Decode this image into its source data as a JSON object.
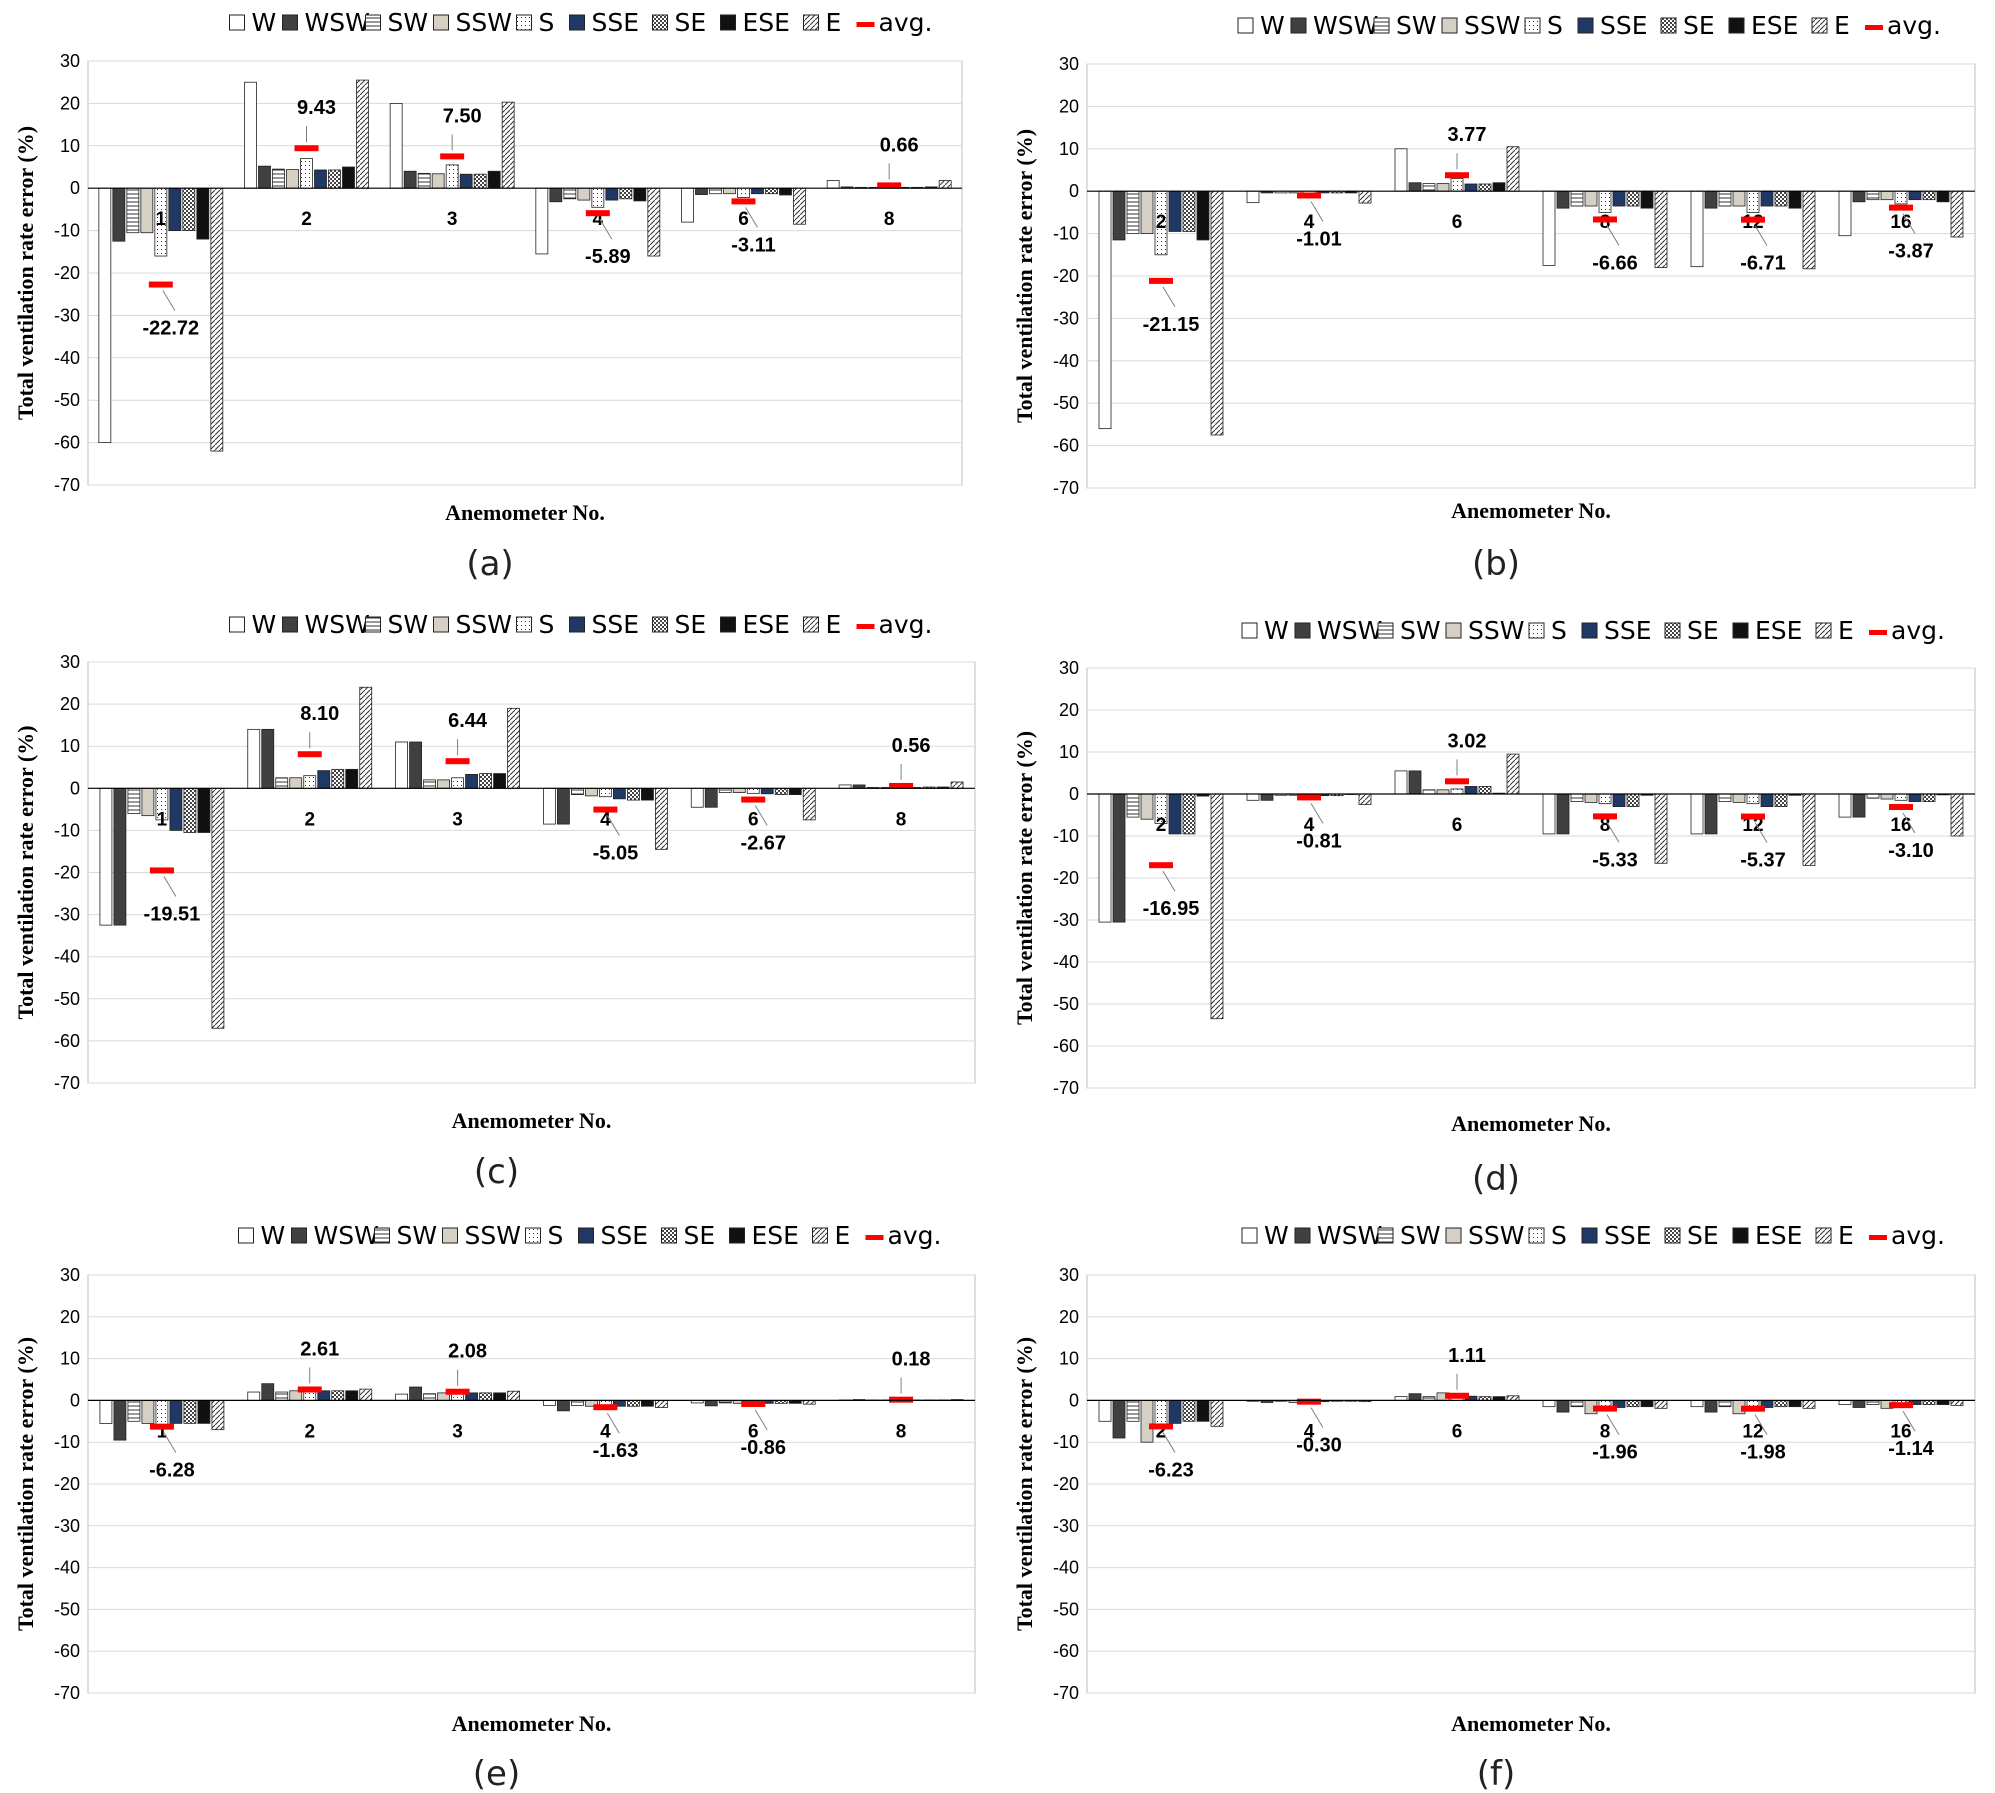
{
  "legend": {
    "series": [
      "W",
      "WSW",
      "SW",
      "SSW",
      "S",
      "SSE",
      "SE",
      "ESE",
      "E"
    ],
    "avg_label": "avg."
  },
  "colors": {
    "W": "#ffffff",
    "WSW": "#404040",
    "SW": "#ffffff",
    "SSW": "#d6cfc4",
    "S": "#ffffff",
    "SSE": "#1f3864",
    "SE": "#ffffff",
    "ESE": "#111111",
    "E": "#ffffff",
    "avg": "#ff0000",
    "grid": "#d9d9d9",
    "axis": "#000000"
  },
  "patterns": {
    "W": "plain",
    "WSW": "solid",
    "SW": "hlines",
    "SSW": "solid",
    "S": "dots",
    "SSE": "solid",
    "SE": "checker",
    "ESE": "solid",
    "E": "diag"
  },
  "chart_data": [
    {
      "type": "bar",
      "panel": "(a)",
      "ylabel": "Total ventilation rate error (%)",
      "xlabel": "Anemometer No.",
      "ylim": [
        -70,
        30
      ],
      "yticks": [
        30,
        20,
        10,
        0,
        -10,
        -20,
        -30,
        -40,
        -50,
        -60,
        -70
      ],
      "categories": [
        "1",
        "2",
        "3",
        "4",
        "6",
        "8"
      ],
      "series": [
        {
          "name": "W",
          "values": [
            -60,
            25,
            20,
            -15.5,
            -8,
            1.8
          ]
        },
        {
          "name": "WSW",
          "values": [
            -12.5,
            5.2,
            4,
            -3.2,
            -1.5,
            0.3
          ]
        },
        {
          "name": "SW",
          "values": [
            -10.5,
            4.5,
            3.5,
            -2.5,
            -1.3,
            0.2
          ]
        },
        {
          "name": "SSW",
          "values": [
            -10.5,
            4.4,
            3.4,
            -2.8,
            -1.3,
            0.2
          ]
        },
        {
          "name": "S",
          "values": [
            -16,
            7,
            5.5,
            -4.5,
            -2.2,
            0.3
          ]
        },
        {
          "name": "SSE",
          "values": [
            -10,
            4.3,
            3.3,
            -2.8,
            -1.3,
            0.2
          ]
        },
        {
          "name": "SE",
          "values": [
            -10,
            4.3,
            3.3,
            -2.5,
            -1.3,
            0.2
          ]
        },
        {
          "name": "ESE",
          "values": [
            -12,
            5,
            4,
            -3,
            -1.6,
            0.3
          ]
        },
        {
          "name": "E",
          "values": [
            -62,
            25.5,
            20.3,
            -16,
            -8.5,
            1.8
          ]
        }
      ],
      "avg": [
        -22.72,
        9.43,
        7.5,
        -5.89,
        -3.11,
        0.66
      ],
      "avg_labels": [
        "-22.72",
        "9.43",
        "7.50",
        "-5.89",
        "-3.11",
        "0.66"
      ]
    },
    {
      "type": "bar",
      "panel": "(b)",
      "ylabel": "Total ventilation rate error (%)",
      "xlabel": "Anemometer No.",
      "ylim": [
        -70,
        30
      ],
      "yticks": [
        30,
        20,
        10,
        0,
        -10,
        -20,
        -30,
        -40,
        -50,
        -60,
        -70
      ],
      "categories": [
        "2",
        "4",
        "6",
        "8",
        "12",
        "16"
      ],
      "series": [
        {
          "name": "W",
          "values": [
            -56,
            -2.7,
            10,
            -17.5,
            -17.8,
            -10.5
          ]
        },
        {
          "name": "WSW",
          "values": [
            -11.5,
            -0.4,
            2,
            -4,
            -4,
            -2.5
          ]
        },
        {
          "name": "SW",
          "values": [
            -10,
            -0.4,
            1.8,
            -3.5,
            -3.5,
            -2
          ]
        },
        {
          "name": "SSW",
          "values": [
            -10,
            -0.4,
            1.8,
            -3.5,
            -3.5,
            -2
          ]
        },
        {
          "name": "S",
          "values": [
            -15,
            -0.5,
            3,
            -5,
            -5,
            -3
          ]
        },
        {
          "name": "SSE",
          "values": [
            -9.5,
            -0.4,
            1.7,
            -3.5,
            -3.5,
            -2
          ]
        },
        {
          "name": "SE",
          "values": [
            -9.5,
            -0.4,
            1.7,
            -3.5,
            -3.5,
            -2
          ]
        },
        {
          "name": "ESE",
          "values": [
            -11.5,
            -0.4,
            2,
            -4,
            -4,
            -2.5
          ]
        },
        {
          "name": "E",
          "values": [
            -57.5,
            -2.8,
            10.5,
            -18,
            -18.3,
            -10.8
          ]
        }
      ],
      "avg": [
        -21.15,
        -1.01,
        3.77,
        -6.66,
        -6.71,
        -3.87
      ],
      "avg_labels": [
        "-21.15",
        "-1.01",
        "3.77",
        "-6.66",
        "-6.71",
        "-3.87"
      ]
    },
    {
      "type": "bar",
      "panel": "(c)",
      "ylabel": "Total ventilation rate error (%)",
      "xlabel": "Anemometer No.",
      "ylim": [
        -70,
        30
      ],
      "yticks": [
        30,
        20,
        10,
        0,
        -10,
        -20,
        -30,
        -40,
        -50,
        -60,
        -70
      ],
      "categories": [
        "1",
        "2",
        "3",
        "4",
        "6",
        "8"
      ],
      "series": [
        {
          "name": "W",
          "values": [
            -32.5,
            14,
            11,
            -8.5,
            -4.5,
            0.8
          ]
        },
        {
          "name": "WSW",
          "values": [
            -32.5,
            14,
            11,
            -8.5,
            -4.5,
            0.8
          ]
        },
        {
          "name": "SW",
          "values": [
            -6,
            2.5,
            2,
            -1.5,
            -1,
            0.2
          ]
        },
        {
          "name": "SSW",
          "values": [
            -6.5,
            2.5,
            2,
            -1.8,
            -1,
            0.2
          ]
        },
        {
          "name": "S",
          "values": [
            -7.5,
            3,
            2.5,
            -2,
            -1.2,
            0.2
          ]
        },
        {
          "name": "SSE",
          "values": [
            -10,
            4.2,
            3.3,
            -2.5,
            -1.3,
            0.2
          ]
        },
        {
          "name": "SE",
          "values": [
            -10.5,
            4.5,
            3.5,
            -2.8,
            -1.5,
            0.3
          ]
        },
        {
          "name": "ESE",
          "values": [
            -10.5,
            4.5,
            3.5,
            -2.8,
            -1.5,
            0.3
          ]
        },
        {
          "name": "E",
          "values": [
            -57,
            24,
            19,
            -14.5,
            -7.5,
            1.5
          ]
        }
      ],
      "avg": [
        -19.51,
        8.1,
        6.44,
        -5.05,
        -2.67,
        0.56
      ],
      "avg_labels": [
        "-19.51",
        "8.10",
        "6.44",
        "-5.05",
        "-2.67",
        "0.56"
      ]
    },
    {
      "type": "bar",
      "panel": "(d)",
      "ylabel": "Total ventilation rate error (%)",
      "xlabel": "Anemometer No.",
      "ylim": [
        -70,
        30
      ],
      "yticks": [
        30,
        20,
        10,
        0,
        -10,
        -20,
        -30,
        -40,
        -50,
        -60,
        -70
      ],
      "categories": [
        "2",
        "4",
        "6",
        "8",
        "12",
        "16"
      ],
      "series": [
        {
          "name": "W",
          "values": [
            -30.5,
            -1.5,
            5.5,
            -9.5,
            -9.5,
            -5.5
          ]
        },
        {
          "name": "WSW",
          "values": [
            -30.5,
            -1.5,
            5.5,
            -9.5,
            -9.5,
            -5.5
          ]
        },
        {
          "name": "SW",
          "values": [
            -5.5,
            -0.3,
            1,
            -1.8,
            -1.8,
            -1
          ]
        },
        {
          "name": "SSW",
          "values": [
            -6,
            -0.3,
            1,
            -2,
            -2,
            -1.2
          ]
        },
        {
          "name": "S",
          "values": [
            -7,
            -0.3,
            1.2,
            -2.3,
            -2.3,
            -1.5
          ]
        },
        {
          "name": "SSE",
          "values": [
            -9.5,
            -0.4,
            1.8,
            -3,
            -3,
            -1.8
          ]
        },
        {
          "name": "SE",
          "values": [
            -9.5,
            -0.4,
            1.8,
            -3,
            -3,
            -1.8
          ]
        },
        {
          "name": "ESE",
          "values": [
            -0.5,
            -0.1,
            0.2,
            -0.3,
            -0.3,
            -0.2
          ]
        },
        {
          "name": "E",
          "values": [
            -53.5,
            -2.5,
            9.5,
            -16.5,
            -17,
            -10
          ]
        }
      ],
      "avg": [
        -16.95,
        -0.81,
        3.02,
        -5.33,
        -5.37,
        -3.1
      ],
      "avg_labels": [
        "-16.95",
        "-0.81",
        "3.02",
        "-5.33",
        "-5.37",
        "-3.10"
      ]
    },
    {
      "type": "bar",
      "panel": "(e)",
      "ylabel": "Total ventilation rate error (%)",
      "xlabel": "Anemometer No.",
      "ylim": [
        -70,
        30
      ],
      "yticks": [
        30,
        20,
        10,
        0,
        -10,
        -20,
        -30,
        -40,
        -50,
        -60,
        -70
      ],
      "categories": [
        "1",
        "2",
        "3",
        "4",
        "6",
        "8"
      ],
      "series": [
        {
          "name": "W",
          "values": [
            -5.5,
            2,
            1.5,
            -1.2,
            -0.6,
            0.1
          ]
        },
        {
          "name": "WSW",
          "values": [
            -9.5,
            4,
            3.2,
            -2.5,
            -1.3,
            0.2
          ]
        },
        {
          "name": "SW",
          "values": [
            -5,
            2,
            1.6,
            -1.2,
            -0.6,
            0.1
          ]
        },
        {
          "name": "SSW",
          "values": [
            -5.5,
            2.3,
            1.8,
            -1.4,
            -0.7,
            0.1
          ]
        },
        {
          "name": "S",
          "values": [
            -6,
            2.5,
            2,
            -1.5,
            -0.8,
            0.1
          ]
        },
        {
          "name": "SSE",
          "values": [
            -5.5,
            2.3,
            1.8,
            -1.4,
            -0.7,
            0.1
          ]
        },
        {
          "name": "SE",
          "values": [
            -5.5,
            2.3,
            1.8,
            -1.4,
            -0.7,
            0.1
          ]
        },
        {
          "name": "ESE",
          "values": [
            -5.5,
            2.3,
            1.8,
            -1.4,
            -0.7,
            0.1
          ]
        },
        {
          "name": "E",
          "values": [
            -7,
            2.7,
            2.2,
            -1.7,
            -0.9,
            0.2
          ]
        }
      ],
      "avg": [
        -6.28,
        2.61,
        2.08,
        -1.63,
        -0.86,
        0.18
      ],
      "avg_labels": [
        "-6.28",
        "2.61",
        "2.08",
        "-1.63",
        "-0.86",
        "0.18"
      ]
    },
    {
      "type": "bar",
      "panel": "(f)",
      "ylabel": "Total ventilation rate error (%)",
      "xlabel": "Anemometer No.",
      "ylim": [
        -70,
        30
      ],
      "yticks": [
        30,
        20,
        10,
        0,
        -10,
        -20,
        -30,
        -40,
        -50,
        -60,
        -70
      ],
      "categories": [
        "2",
        "4",
        "6",
        "8",
        "12",
        "16"
      ],
      "series": [
        {
          "name": "W",
          "values": [
            -5,
            -0.2,
            0.9,
            -1.5,
            -1.5,
            -1
          ]
        },
        {
          "name": "WSW",
          "values": [
            -9,
            -0.5,
            1.6,
            -2.8,
            -2.8,
            -1.7
          ]
        },
        {
          "name": "SW",
          "values": [
            -5,
            -0.2,
            0.9,
            -1.5,
            -1.5,
            -1
          ]
        },
        {
          "name": "SSW",
          "values": [
            -10,
            -0.5,
            1.8,
            -3.2,
            -3.2,
            -1.9
          ]
        },
        {
          "name": "S",
          "values": [
            -6,
            -0.3,
            1.1,
            -1.9,
            -1.9,
            -1.1
          ]
        },
        {
          "name": "SSE",
          "values": [
            -5.5,
            -0.3,
            1,
            -1.7,
            -1.7,
            -1
          ]
        },
        {
          "name": "SE",
          "values": [
            -5,
            -0.2,
            0.9,
            -1.5,
            -1.5,
            -1
          ]
        },
        {
          "name": "ESE",
          "values": [
            -5,
            -0.2,
            0.9,
            -1.5,
            -1.5,
            -1
          ]
        },
        {
          "name": "E",
          "values": [
            -6.2,
            -0.3,
            1.1,
            -1.9,
            -1.9,
            -1.2
          ]
        }
      ],
      "avg": [
        -6.23,
        -0.3,
        1.11,
        -1.96,
        -1.98,
        -1.14
      ],
      "avg_labels": [
        "-6.23",
        "-0.30",
        "1.11",
        "-1.96",
        "-1.98",
        "-1.14"
      ]
    }
  ]
}
